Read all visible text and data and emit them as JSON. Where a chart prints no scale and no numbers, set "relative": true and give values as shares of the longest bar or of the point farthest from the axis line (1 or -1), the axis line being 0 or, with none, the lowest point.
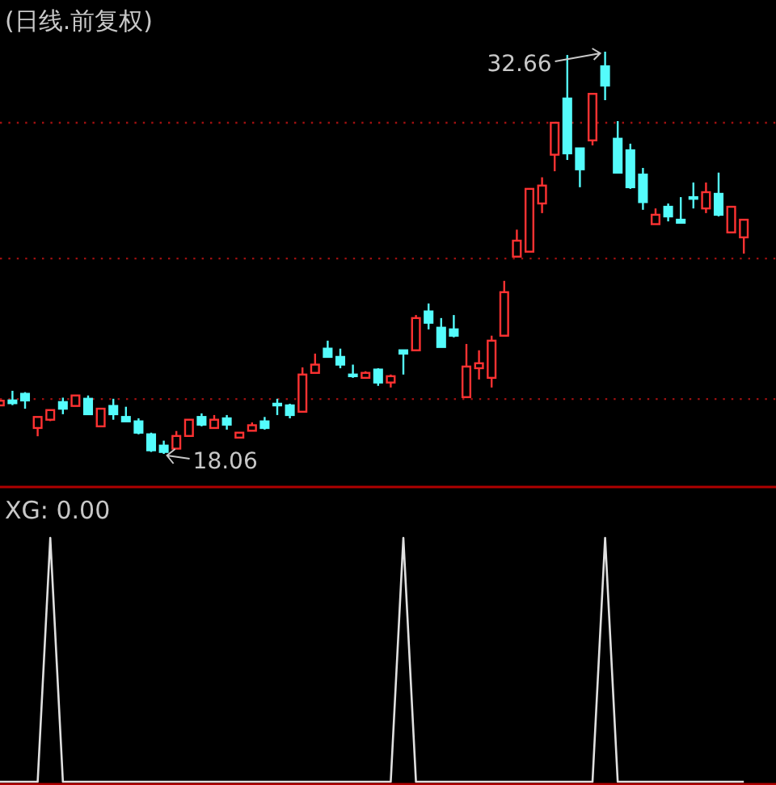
{
  "chart_data": [
    {
      "type": "candlestick",
      "title": "(日线.前复权)",
      "categories": [
        null,
        null,
        null,
        null,
        null,
        null,
        null,
        null,
        null,
        null,
        null,
        null,
        null,
        null,
        null,
        null,
        null,
        null,
        null,
        null,
        null,
        null,
        null,
        null,
        null,
        null,
        null,
        null,
        null,
        null,
        null,
        null,
        null,
        null,
        null,
        null,
        null,
        null,
        null,
        null,
        null,
        null,
        null,
        null,
        null,
        null,
        null,
        null,
        null,
        null,
        null,
        null,
        null,
        null,
        null,
        null,
        null,
        null,
        null,
        null
      ],
      "ohlc": [
        [
          19.82,
          20.0,
          19.8,
          19.99
        ],
        [
          20.0,
          20.35,
          19.83,
          19.9
        ],
        [
          20.24,
          20.3,
          19.7,
          20.0
        ],
        [
          19.0,
          19.4,
          18.7,
          19.4
        ],
        [
          19.3,
          19.65,
          19.25,
          19.65
        ],
        [
          19.94,
          20.1,
          19.5,
          19.7
        ],
        [
          19.8,
          20.2,
          19.8,
          20.18
        ],
        [
          20.06,
          20.18,
          19.5,
          19.5
        ],
        [
          19.06,
          19.7,
          19.06,
          19.7
        ],
        [
          19.8,
          20.06,
          19.3,
          19.5
        ],
        [
          19.4,
          19.77,
          19.24,
          19.24
        ],
        [
          19.24,
          19.35,
          18.77,
          18.83
        ],
        [
          18.77,
          18.83,
          18.13,
          18.19
        ],
        [
          18.36,
          18.54,
          18.06,
          18.13
        ],
        [
          18.25,
          18.89,
          18.25,
          18.71
        ],
        [
          18.71,
          19.3,
          18.71,
          19.3
        ],
        [
          19.4,
          19.53,
          19.06,
          19.12
        ],
        [
          19.0,
          19.47,
          19.0,
          19.3
        ],
        [
          19.35,
          19.47,
          18.94,
          19.12
        ],
        [
          18.65,
          18.83,
          18.65,
          18.83
        ],
        [
          18.9,
          19.2,
          18.9,
          19.1
        ],
        [
          19.24,
          19.4,
          18.94,
          19.0
        ],
        [
          19.88,
          20.06,
          19.47,
          19.82
        ],
        [
          19.82,
          19.88,
          19.35,
          19.47
        ],
        [
          19.59,
          21.2,
          19.59,
          20.94
        ],
        [
          21.0,
          21.7,
          21.0,
          21.3
        ],
        [
          21.88,
          22.17,
          21.58,
          21.58
        ],
        [
          21.58,
          21.88,
          21.17,
          21.3
        ],
        [
          20.94,
          21.3,
          20.82,
          20.88
        ],
        [
          20.82,
          21.06,
          20.82,
          21.0
        ],
        [
          21.12,
          21.17,
          20.53,
          20.65
        ],
        [
          20.65,
          20.94,
          20.47,
          20.88
        ],
        [
          21.82,
          21.82,
          20.94,
          21.7
        ],
        [
          21.82,
          23.1,
          21.82,
          22.99
        ],
        [
          23.23,
          23.52,
          22.58,
          22.82
        ],
        [
          22.64,
          22.99,
          21.94,
          21.94
        ],
        [
          22.58,
          23.1,
          22.29,
          22.35
        ],
        [
          20.12,
          22.05,
          20.12,
          21.23
        ],
        [
          21.17,
          21.82,
          20.76,
          21.35
        ],
        [
          20.82,
          22.35,
          20.47,
          22.17
        ],
        [
          22.35,
          24.34,
          22.35,
          23.93
        ],
        [
          25.22,
          26.2,
          25.22,
          25.8
        ],
        [
          25.4,
          27.68,
          25.4,
          27.68
        ],
        [
          27.15,
          28.1,
          26.8,
          27.8
        ],
        [
          28.92,
          30.08,
          28.32,
          30.08
        ],
        [
          30.96,
          32.54,
          28.73,
          28.97
        ],
        [
          29.15,
          29.15,
          27.74,
          28.39
        ],
        [
          29.44,
          31.13,
          29.26,
          31.13
        ],
        [
          32.13,
          32.66,
          30.9,
          31.43
        ],
        [
          29.5,
          30.14,
          28.27,
          28.27
        ],
        [
          29.08,
          29.32,
          27.68,
          27.74
        ],
        [
          28.2,
          28.44,
          26.92,
          27.2
        ],
        [
          26.4,
          26.97,
          26.4,
          26.74
        ],
        [
          27.03,
          27.15,
          26.5,
          26.68
        ],
        [
          26.56,
          27.38,
          26.45,
          26.45
        ],
        [
          27.38,
          27.91,
          26.97,
          27.32
        ],
        [
          26.97,
          27.91,
          26.8,
          27.56
        ],
        [
          27.5,
          28.27,
          26.68,
          26.74
        ],
        [
          26.1,
          27.03,
          26.1,
          27.03
        ],
        [
          25.92,
          26.56,
          25.33,
          26.56
        ]
      ],
      "colors": [
        "#ff3232",
        "#54fcfc",
        "#54fcfc",
        "#ff3232",
        "#ff3232",
        "#54fcfc",
        "#ff3232",
        "#54fcfc",
        "#ff3232",
        "#54fcfc",
        "#54fcfc",
        "#54fcfc",
        "#54fcfc",
        "#54fcfc",
        "#ff3232",
        "#ff3232",
        "#54fcfc",
        "#ff3232",
        "#54fcfc",
        "#ff3232",
        "#ff3232",
        "#54fcfc",
        "#54fcfc",
        "#54fcfc",
        "#ff3232",
        "#ff3232",
        "#54fcfc",
        "#54fcfc",
        "#54fcfc",
        "#ff3232",
        "#54fcfc",
        "#ff3232",
        "#54fcfc",
        "#ff3232",
        "#54fcfc",
        "#54fcfc",
        "#54fcfc",
        "#ff3232",
        "#ff3232",
        "#ff3232",
        "#ff3232",
        "#ff3232",
        "#ff3232",
        "#ff3232",
        "#ff3232",
        "#54fcfc",
        "#54fcfc",
        "#ff3232",
        "#54fcfc",
        "#54fcfc",
        "#54fcfc",
        "#54fcfc",
        "#ff3232",
        "#54fcfc",
        "#54fcfc",
        "#54fcfc",
        "#ff3232",
        "#54fcfc",
        "#ff3232",
        "#ff3232"
      ],
      "grid": "y",
      "yticks": [
        {
          "value": 30.08,
          "label": null
        },
        {
          "value": 25.15,
          "label": null
        },
        {
          "value": 20.05,
          "label": null
        }
      ],
      "annotations": [
        "32.66",
        "18.06"
      ]
    },
    {
      "type": "line",
      "title": "XG: 0.00",
      "relative": true,
      "categories": [
        null,
        null,
        null,
        null,
        null,
        null,
        null,
        null,
        null,
        null,
        null,
        null,
        null,
        null,
        null,
        null,
        null,
        null,
        null,
        null,
        null,
        null,
        null,
        null,
        null,
        null,
        null,
        null,
        null,
        null,
        null,
        null,
        null,
        null,
        null,
        null,
        null,
        null,
        null,
        null,
        null,
        null,
        null,
        null,
        null,
        null,
        null,
        null,
        null,
        null,
        null,
        null,
        null,
        null,
        null,
        null,
        null,
        null,
        null,
        null
      ],
      "series": [
        {
          "color": "#e0e0e0",
          "values": [
            0,
            0,
            0,
            0,
            1,
            0,
            0,
            0,
            0,
            0,
            0,
            0,
            0,
            0,
            0,
            0,
            0,
            0,
            0,
            0,
            0,
            0,
            0,
            0,
            0,
            0,
            0,
            0,
            0,
            0,
            0,
            0,
            1,
            0,
            0,
            0,
            0,
            0,
            0,
            0,
            0,
            0,
            0,
            0,
            0,
            0,
            0,
            0,
            1,
            0,
            0,
            0,
            0,
            0,
            0,
            0,
            0,
            0,
            0,
            0
          ]
        }
      ]
    }
  ]
}
